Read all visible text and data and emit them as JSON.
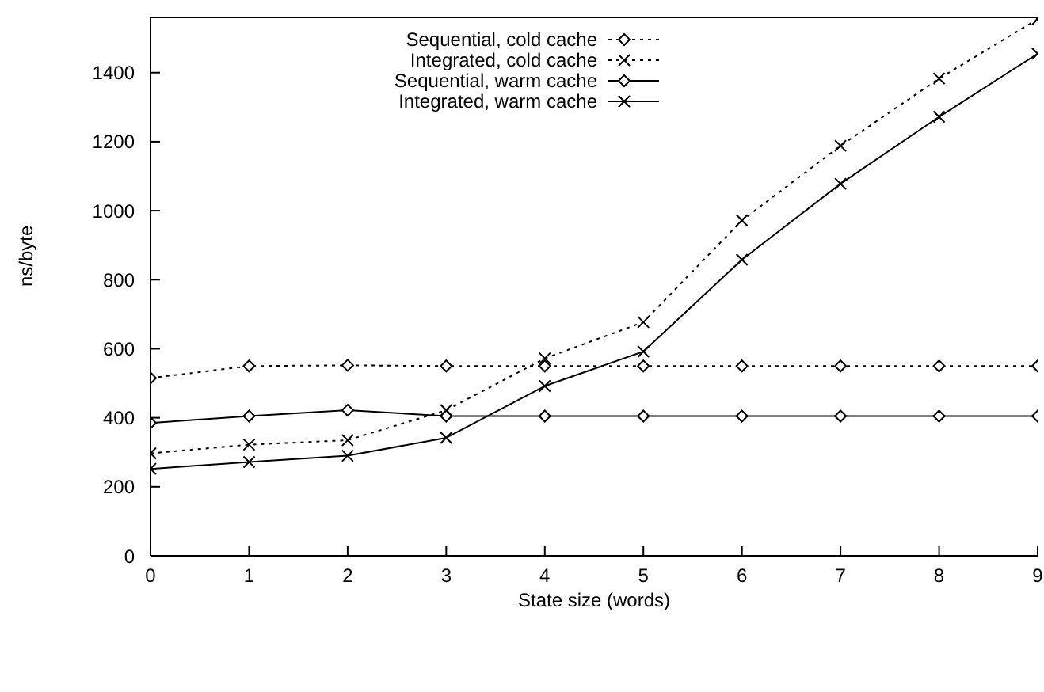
{
  "chart_data": {
    "type": "line",
    "xlabel": "State size (words)",
    "ylabel": "ns/byte",
    "x": [
      0,
      1,
      2,
      3,
      4,
      5,
      6,
      7,
      8,
      9
    ],
    "xlim": [
      0,
      9
    ],
    "xticks": [
      0,
      1,
      2,
      3,
      4,
      5,
      6,
      7,
      8,
      9
    ],
    "ylim": [
      0,
      1560
    ],
    "yticks": [
      0,
      200,
      400,
      600,
      800,
      1000,
      1200,
      1400
    ],
    "grid": false,
    "legend": "top left",
    "series": [
      {
        "name": "Sequential, cold cache",
        "color": "#000000",
        "marker": "diamond",
        "line_style": "dotted",
        "values": [
          515,
          550,
          552,
          550,
          550,
          550,
          550,
          550,
          550,
          550
        ]
      },
      {
        "name": "Integrated, cold cache",
        "color": "#000000",
        "marker": "cross",
        "line_style": "dotted",
        "values": [
          297,
          322,
          335,
          422,
          572,
          677,
          972,
          1188,
          1383,
          1555
        ]
      },
      {
        "name": "Sequential, warm cache",
        "color": "#000000",
        "marker": "diamond",
        "line_style": "solid",
        "values": [
          385,
          405,
          422,
          405,
          405,
          405,
          405,
          405,
          405,
          405
        ]
      },
      {
        "name": "Integrated, warm cache",
        "color": "#000000",
        "marker": "cross",
        "line_style": "solid",
        "values": [
          252,
          272,
          290,
          342,
          492,
          592,
          858,
          1078,
          1272,
          1455
        ]
      }
    ]
  }
}
